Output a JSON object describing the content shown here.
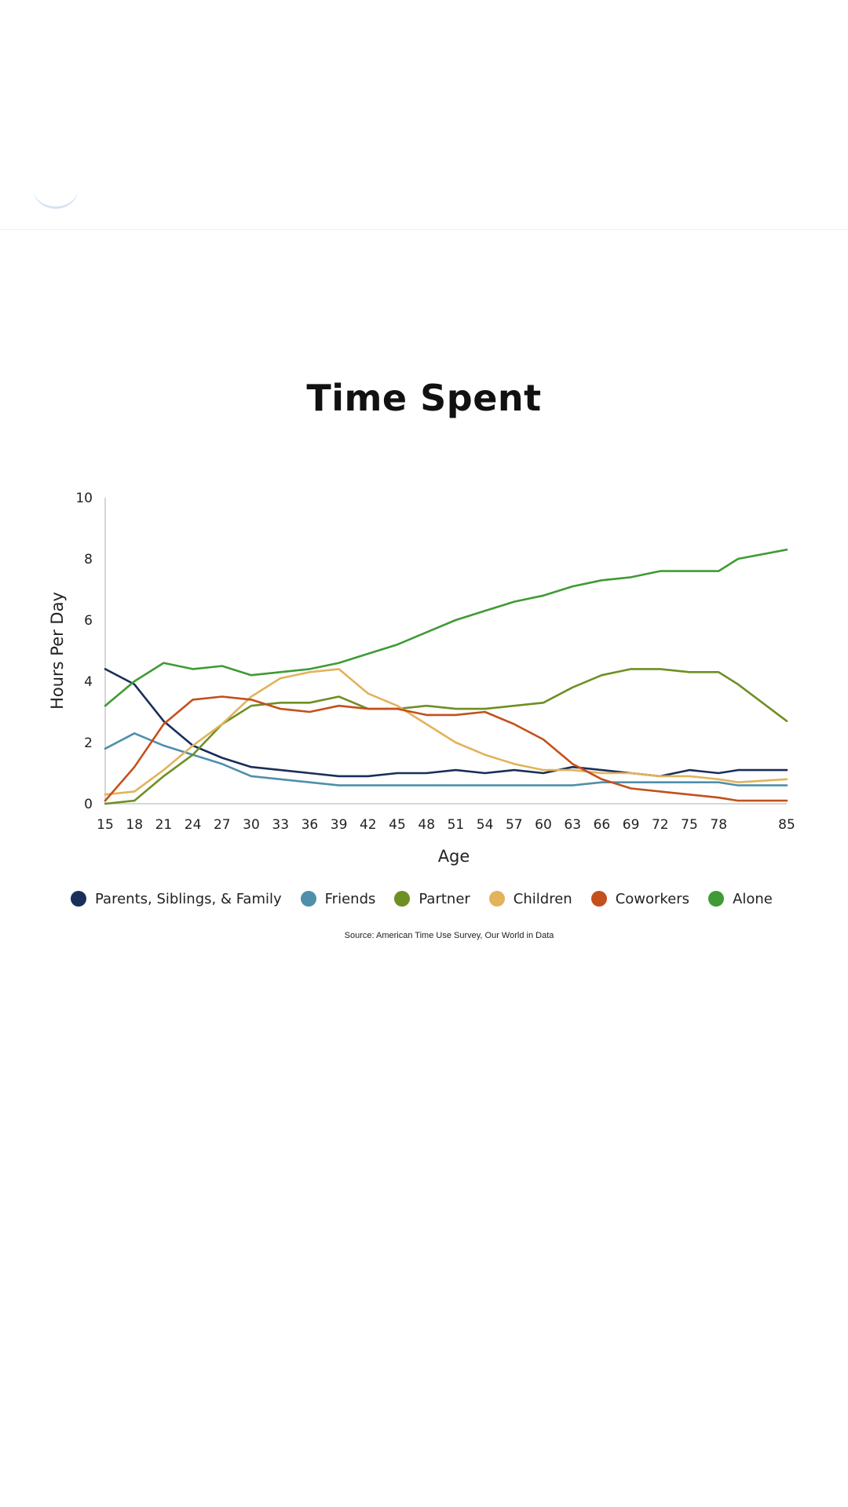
{
  "colors": {
    "family": "#1a2e5a",
    "friends": "#4f8fac",
    "partner": "#6e8f23",
    "children": "#e2b35a",
    "coworkers": "#c4501c",
    "alone": "#3f9b35"
  },
  "chart_data": {
    "type": "line",
    "title": "Time Spent",
    "xlabel": "Age",
    "ylabel": "Hours Per Day",
    "xlim": [
      15,
      85
    ],
    "ylim": [
      0,
      10
    ],
    "x_ticks": [
      "15",
      "18",
      "21",
      "24",
      "27",
      "30",
      "33",
      "36",
      "39",
      "42",
      "45",
      "48",
      "51",
      "54",
      "57",
      "60",
      "63",
      "66",
      "69",
      "72",
      "75",
      "78",
      "85"
    ],
    "y_ticks": [
      "0",
      "2",
      "4",
      "6",
      "8",
      "10"
    ],
    "grid": false,
    "legend_position": "bottom",
    "source": "Source: American Time Use Survey, Our World in Data",
    "x": [
      15,
      18,
      21,
      24,
      27,
      30,
      33,
      36,
      39,
      42,
      45,
      48,
      51,
      54,
      57,
      60,
      63,
      66,
      69,
      72,
      75,
      78,
      80,
      85
    ],
    "series": [
      {
        "name": "Parents, Siblings, & Family",
        "color_key": "family",
        "values": [
          4.4,
          3.9,
          2.7,
          1.9,
          1.5,
          1.2,
          1.1,
          1.0,
          0.9,
          0.9,
          1.0,
          1.0,
          1.1,
          1.0,
          1.1,
          1.0,
          1.2,
          1.1,
          1.0,
          0.9,
          1.1,
          1.0,
          1.1,
          1.1
        ]
      },
      {
        "name": "Friends",
        "color_key": "friends",
        "values": [
          1.8,
          2.3,
          1.9,
          1.6,
          1.3,
          0.9,
          0.8,
          0.7,
          0.6,
          0.6,
          0.6,
          0.6,
          0.6,
          0.6,
          0.6,
          0.6,
          0.6,
          0.7,
          0.7,
          0.7,
          0.7,
          0.7,
          0.6,
          0.6
        ]
      },
      {
        "name": "Partner",
        "color_key": "partner",
        "values": [
          0.0,
          0.1,
          0.9,
          1.6,
          2.6,
          3.2,
          3.3,
          3.3,
          3.5,
          3.1,
          3.1,
          3.2,
          3.1,
          3.1,
          3.2,
          3.3,
          3.8,
          4.2,
          4.4,
          4.4,
          4.3,
          4.3,
          3.9,
          2.7
        ]
      },
      {
        "name": "Children",
        "color_key": "children",
        "values": [
          0.3,
          0.4,
          1.1,
          1.9,
          2.6,
          3.5,
          4.1,
          4.3,
          4.4,
          3.6,
          3.2,
          2.6,
          2.0,
          1.6,
          1.3,
          1.1,
          1.1,
          1.0,
          1.0,
          0.9,
          0.9,
          0.8,
          0.7,
          0.8
        ]
      },
      {
        "name": "Coworkers",
        "color_key": "coworkers",
        "values": [
          0.1,
          1.2,
          2.6,
          3.4,
          3.5,
          3.4,
          3.1,
          3.0,
          3.2,
          3.1,
          3.1,
          2.9,
          2.9,
          3.0,
          2.6,
          2.1,
          1.3,
          0.8,
          0.5,
          0.4,
          0.3,
          0.2,
          0.1,
          0.1
        ]
      },
      {
        "name": "Alone",
        "color_key": "alone",
        "values": [
          3.2,
          4.0,
          4.6,
          4.4,
          4.5,
          4.2,
          4.3,
          4.4,
          4.6,
          4.9,
          5.2,
          5.6,
          6.0,
          6.3,
          6.6,
          6.8,
          7.1,
          7.3,
          7.4,
          7.6,
          7.6,
          7.6,
          8.0,
          8.3
        ]
      }
    ]
  }
}
